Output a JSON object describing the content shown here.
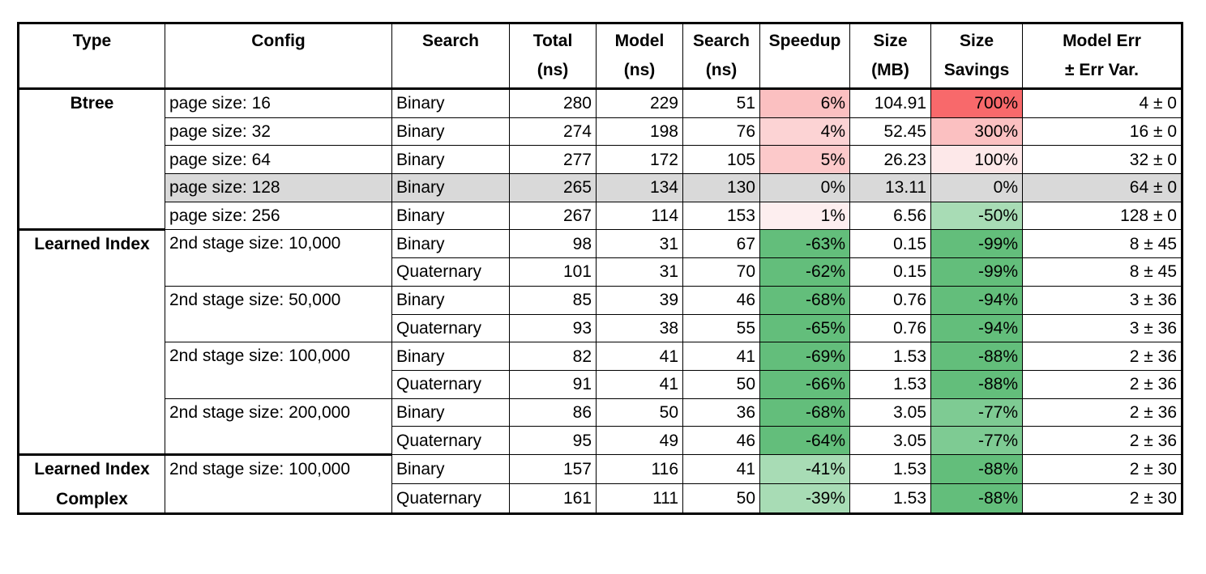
{
  "colors": {
    "baseline_row": "#d9d9d9",
    "red_strong": "#f8696b",
    "red_light": "#fbc0c1",
    "green_strong": "#63be7b",
    "green_light": "#a8dcb5"
  },
  "header": {
    "type": "Type",
    "config": "Config",
    "search": "Search",
    "total_1": "Total",
    "total_2": "(ns)",
    "model_1": "Model",
    "model_2": "(ns)",
    "search_ns_1": "Search",
    "search_ns_2": "(ns)",
    "speedup": "Speedup",
    "size_1": "Size",
    "size_2": "(MB)",
    "savings_1": "Size",
    "savings_2": "Savings",
    "err_1": "Model Err",
    "err_2": "± Err Var."
  },
  "groups": {
    "btree": "Btree",
    "learned": "Learned Index",
    "complex_1": "Learned Index",
    "complex_2": "Complex"
  },
  "rows": [
    {
      "config": "page size:   16",
      "search": "Binary",
      "total": "280",
      "model": "229",
      "search_ns": "51",
      "speedup": "6%",
      "size": "104.91",
      "savings": "700%",
      "err": "4 ± 0"
    },
    {
      "config": "page size:   32",
      "search": "Binary",
      "total": "274",
      "model": "198",
      "search_ns": "76",
      "speedup": "4%",
      "size": "52.45",
      "savings": "300%",
      "err": "16 ± 0"
    },
    {
      "config": "page size:   64",
      "search": "Binary",
      "total": "277",
      "model": "172",
      "search_ns": "105",
      "speedup": "5%",
      "size": "26.23",
      "savings": "100%",
      "err": "32 ± 0"
    },
    {
      "config": "page size: 128",
      "search": "Binary",
      "total": "265",
      "model": "134",
      "search_ns": "130",
      "speedup": "0%",
      "size": "13.11",
      "savings": "0%",
      "err": "64 ± 0"
    },
    {
      "config": "page size: 256",
      "search": "Binary",
      "total": "267",
      "model": "114",
      "search_ns": "153",
      "speedup": "1%",
      "size": "6.56",
      "savings": "-50%",
      "err": "128 ± 0"
    },
    {
      "config": "2nd stage size:   10,000",
      "search": "Binary",
      "total": "98",
      "model": "31",
      "search_ns": "67",
      "speedup": "-63%",
      "size": "0.15",
      "savings": "-99%",
      "err": "8 ± 45"
    },
    {
      "config": "",
      "search": "Quaternary",
      "total": "101",
      "model": "31",
      "search_ns": "70",
      "speedup": "-62%",
      "size": "0.15",
      "savings": "-99%",
      "err": "8 ± 45"
    },
    {
      "config": "2nd stage size:   50,000",
      "search": "Binary",
      "total": "85",
      "model": "39",
      "search_ns": "46",
      "speedup": "-68%",
      "size": "0.76",
      "savings": "-94%",
      "err": "3 ± 36"
    },
    {
      "config": "",
      "search": "Quaternary",
      "total": "93",
      "model": "38",
      "search_ns": "55",
      "speedup": "-65%",
      "size": "0.76",
      "savings": "-94%",
      "err": "3 ± 36"
    },
    {
      "config": "2nd stage size: 100,000",
      "search": "Binary",
      "total": "82",
      "model": "41",
      "search_ns": "41",
      "speedup": "-69%",
      "size": "1.53",
      "savings": "-88%",
      "err": "2 ± 36"
    },
    {
      "config": "",
      "search": "Quaternary",
      "total": "91",
      "model": "41",
      "search_ns": "50",
      "speedup": "-66%",
      "size": "1.53",
      "savings": "-88%",
      "err": "2 ± 36"
    },
    {
      "config": "2nd stage size: 200,000",
      "search": "Binary",
      "total": "86",
      "model": "50",
      "search_ns": "36",
      "speedup": "-68%",
      "size": "3.05",
      "savings": "-77%",
      "err": "2 ± 36"
    },
    {
      "config": "",
      "search": "Quaternary",
      "total": "95",
      "model": "49",
      "search_ns": "46",
      "speedup": "-64%",
      "size": "3.05",
      "savings": "-77%",
      "err": "2 ± 36"
    },
    {
      "config": "2nd stage size: 100,000",
      "search": "Binary",
      "total": "157",
      "model": "116",
      "search_ns": "41",
      "speedup": "-41%",
      "size": "1.53",
      "savings": "-88%",
      "err": "2 ± 30"
    },
    {
      "config": "",
      "search": "Quaternary",
      "total": "161",
      "model": "111",
      "search_ns": "50",
      "speedup": "-39%",
      "size": "1.53",
      "savings": "-88%",
      "err": "2 ± 30"
    }
  ]
}
